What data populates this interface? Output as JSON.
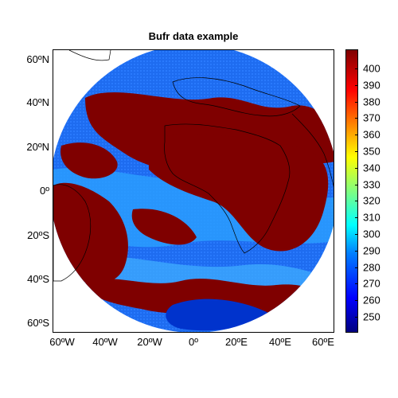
{
  "title": "Bufr data example",
  "y_axis_labels": [
    "60ºN",
    "40ºN",
    "20ºN",
    "0º",
    "20ºS",
    "40ºS",
    "60ºS"
  ],
  "x_axis_labels": [
    "60ºW",
    "40ºW",
    "20ºW",
    "0º",
    "20ºE",
    "40ºE",
    "60ºE"
  ],
  "colorbar": {
    "labels": [
      "400",
      "390",
      "380",
      "370",
      "360",
      "350",
      "340",
      "330",
      "320",
      "310",
      "300",
      "290",
      "280",
      "270",
      "260",
      "250"
    ]
  },
  "colors": {
    "high": "#7f0000",
    "mid_blue": "#1e6cf0",
    "light_blue": "#2aa0ff",
    "dark_blue": "#0033cc",
    "land_outline": "#000000"
  },
  "map_extent": {
    "lon": [
      -65,
      65
    ],
    "lat": [
      -65,
      65
    ]
  }
}
